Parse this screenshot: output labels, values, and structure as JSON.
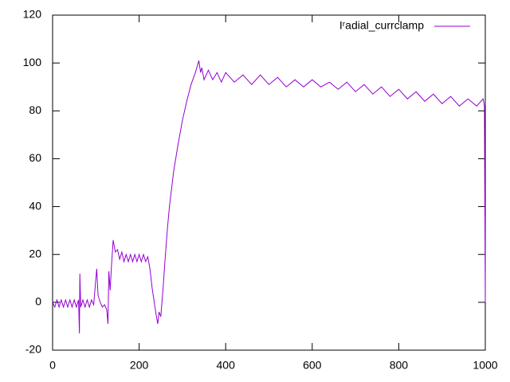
{
  "chart_data": {
    "type": "line",
    "x": [
      0,
      5,
      10,
      15,
      20,
      25,
      30,
      35,
      40,
      45,
      50,
      55,
      60,
      62,
      63,
      65,
      70,
      75,
      80,
      85,
      90,
      95,
      100,
      102,
      105,
      110,
      115,
      120,
      125,
      128,
      130,
      133,
      136,
      140,
      145,
      150,
      155,
      160,
      165,
      170,
      175,
      180,
      185,
      190,
      195,
      200,
      205,
      210,
      215,
      220,
      225,
      230,
      235,
      240,
      243,
      246,
      250,
      255,
      260,
      265,
      270,
      280,
      290,
      300,
      310,
      320,
      330,
      338,
      342,
      345,
      350,
      360,
      370,
      380,
      390,
      400,
      420,
      440,
      460,
      480,
      500,
      520,
      540,
      560,
      580,
      600,
      620,
      640,
      660,
      680,
      700,
      720,
      740,
      760,
      780,
      800,
      820,
      840,
      860,
      880,
      900,
      920,
      940,
      960,
      980,
      995,
      998,
      1000
    ],
    "series": [
      {
        "name": "Iʳadial_currclamp",
        "color": "#9400d3",
        "values": [
          0,
          -2,
          1,
          -2,
          1,
          -2,
          1,
          -2,
          1,
          -2,
          1,
          -2,
          1,
          -13,
          12,
          -2,
          1,
          -2,
          1,
          -2,
          1,
          -1,
          10,
          14,
          3,
          0,
          -2,
          -1,
          -3,
          -9,
          13,
          5,
          15,
          26,
          21,
          22,
          18,
          21,
          17,
          20,
          17,
          20,
          17,
          20,
          17,
          20,
          17,
          20,
          17,
          19,
          14,
          6,
          0,
          -6,
          -9,
          -4,
          -6,
          5,
          18,
          30,
          40,
          55,
          66,
          76,
          84,
          91,
          96,
          101,
          96,
          98,
          93,
          97,
          93,
          96,
          92,
          96,
          92,
          95,
          91,
          95,
          91,
          94,
          90,
          93,
          90,
          93,
          90,
          92,
          89,
          92,
          88,
          91,
          87,
          90,
          86,
          89,
          85,
          88,
          84,
          87,
          83,
          86,
          82,
          85,
          82,
          85,
          82,
          0
        ]
      }
    ],
    "xlim": [
      0,
      1000
    ],
    "ylim": [
      -20,
      120
    ],
    "xticks": [
      0,
      200,
      400,
      600,
      800,
      1000
    ],
    "yticks": [
      -20,
      0,
      20,
      40,
      60,
      80,
      100,
      120
    ],
    "legend": "top-right"
  }
}
